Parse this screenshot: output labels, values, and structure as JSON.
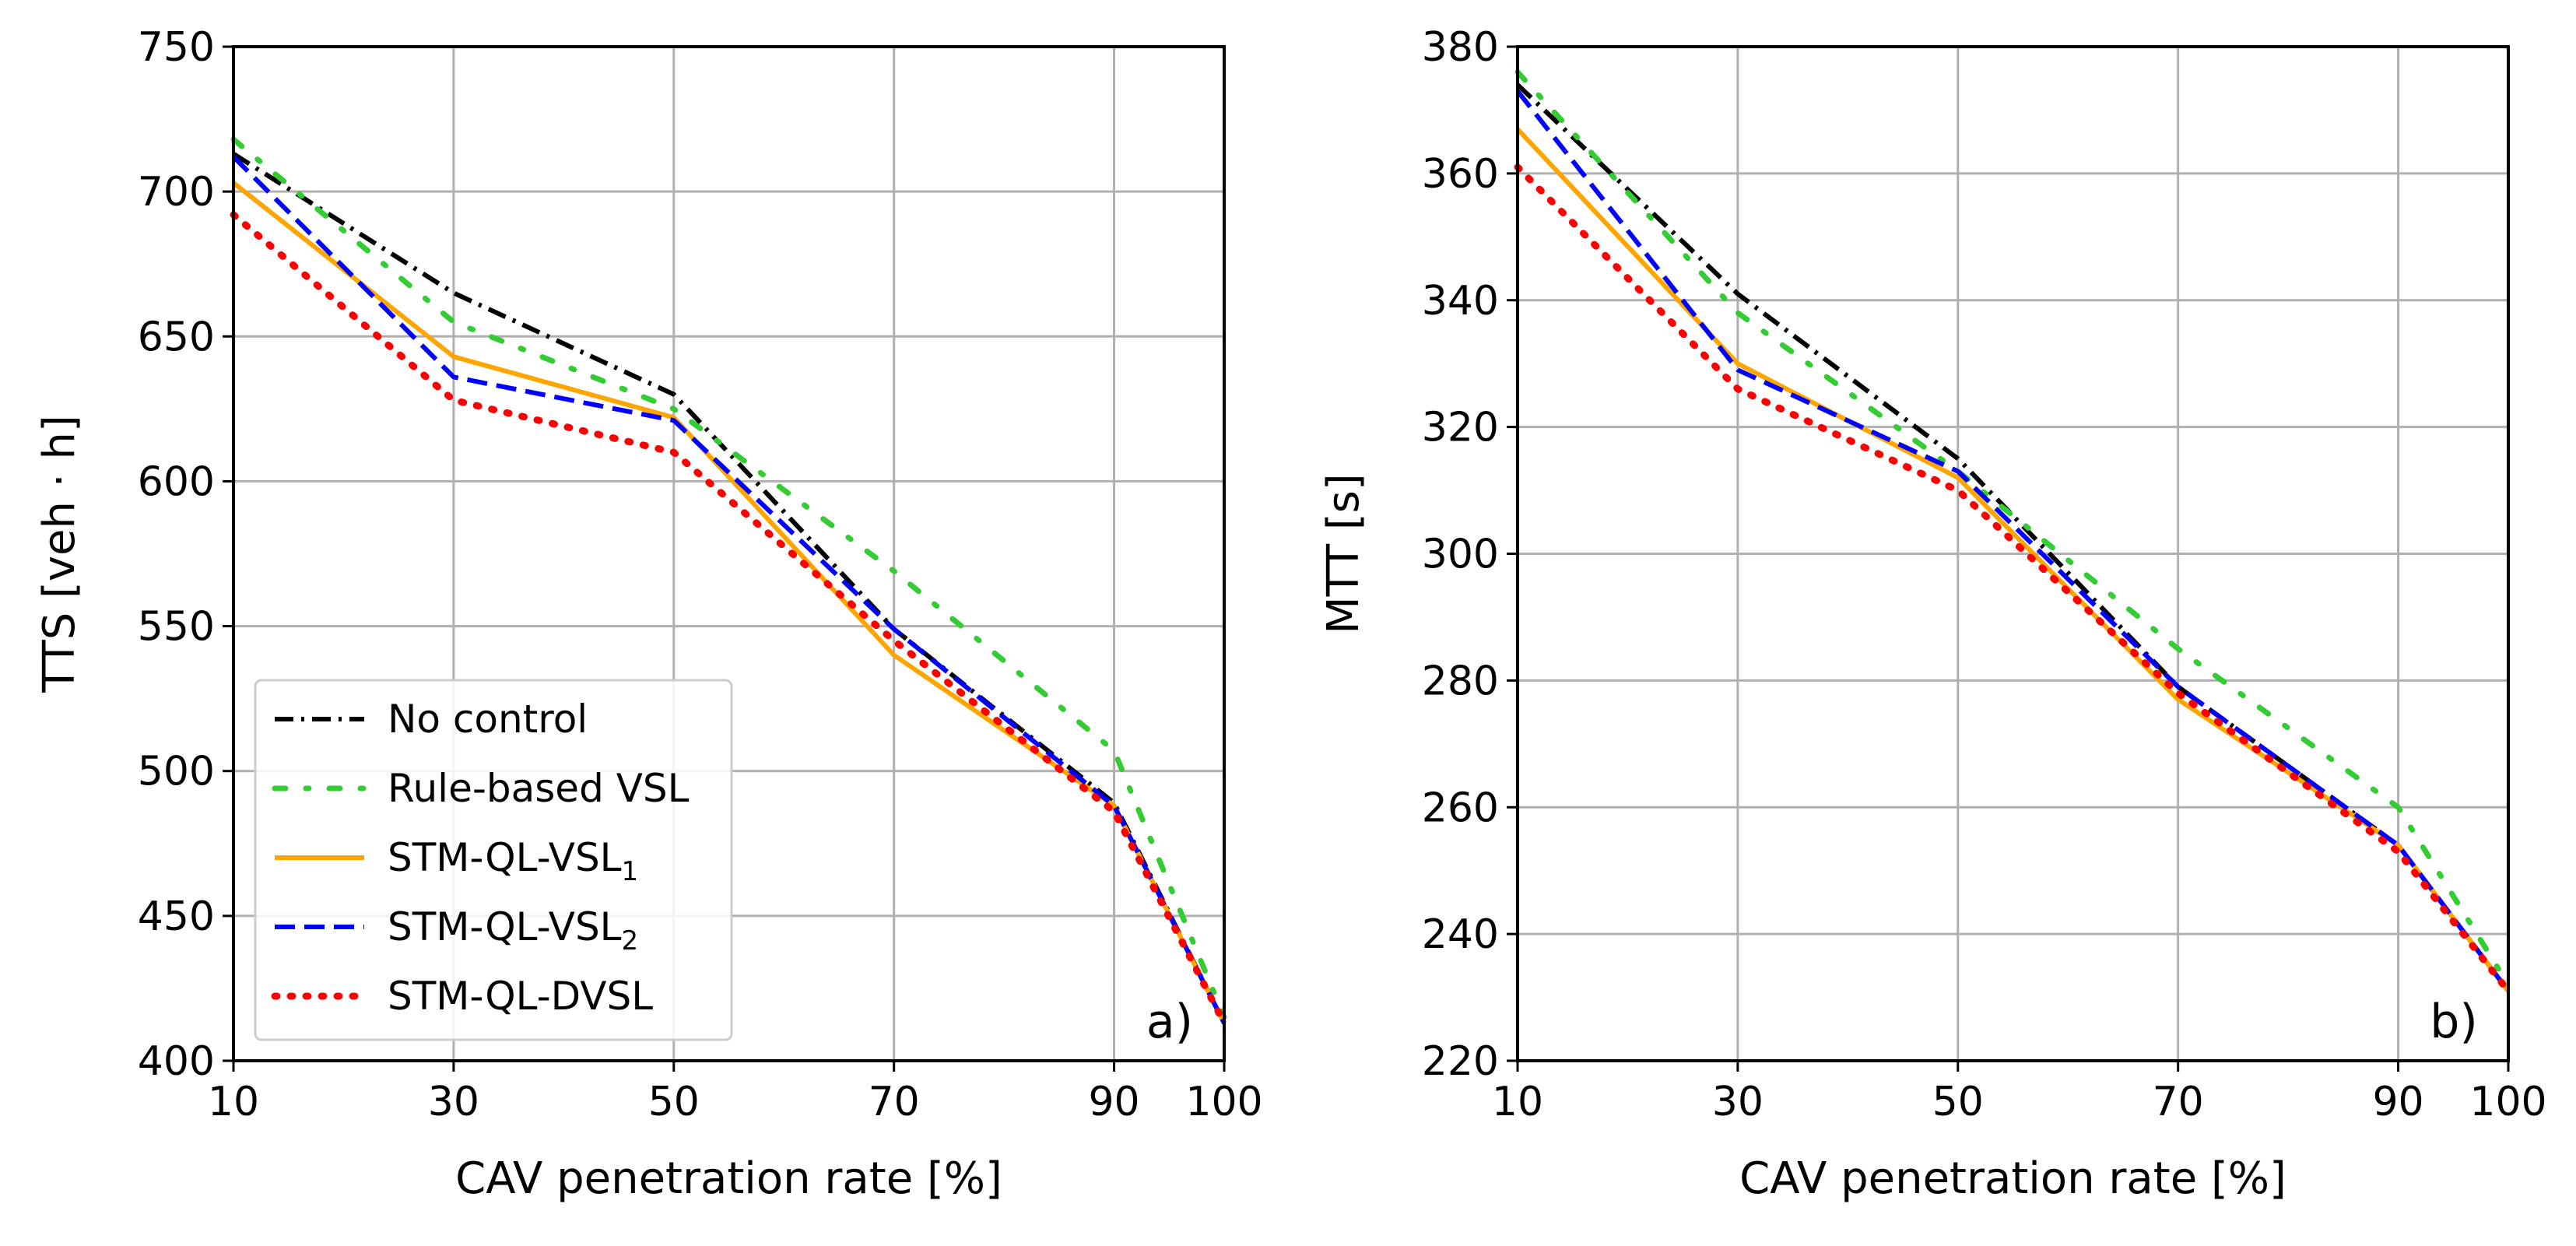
{
  "chart_data": [
    {
      "type": "line",
      "panel_label": "a)",
      "xlabel": "CAV penetration rate [%]",
      "ylabel": "TTS [veh · h]",
      "x": [
        10,
        30,
        50,
        70,
        90,
        100
      ],
      "x_ticks": [
        "10",
        "30",
        "50",
        "70",
        "90",
        "100"
      ],
      "ylim": [
        400,
        750
      ],
      "y_ticks": [
        "400",
        "450",
        "500",
        "550",
        "600",
        "650",
        "700",
        "750"
      ],
      "grid": true,
      "legend_position": "lower-left",
      "series": [
        {
          "name": "No control",
          "label_main": "No control",
          "label_sub": "",
          "color": "#000000",
          "style": "dash-dot",
          "values": [
            713,
            665,
            630,
            549,
            489,
            413
          ]
        },
        {
          "name": "Rule-based VSL",
          "label_main": "Rule-based VSL",
          "label_sub": "",
          "color": "#33cc33",
          "style": "sparse-dash-dot",
          "values": [
            718,
            655,
            625,
            569,
            507,
            415
          ]
        },
        {
          "name": "STM-QL-VSL1",
          "label_main": "STM-QL-VSL",
          "label_sub": "1",
          "color": "#ffa500",
          "style": "solid",
          "values": [
            703,
            643,
            622,
            540,
            488,
            413
          ]
        },
        {
          "name": "STM-QL-VSL2",
          "label_main": "STM-QL-VSL",
          "label_sub": "2",
          "color": "#0000ff",
          "style": "dashed",
          "values": [
            712,
            636,
            621,
            549,
            488,
            413
          ]
        },
        {
          "name": "STM-QL-DVSL",
          "label_main": "STM-QL-DVSL",
          "label_sub": "",
          "color": "#ff0000",
          "style": "dotted",
          "values": [
            692,
            628,
            610,
            545,
            486,
            413
          ]
        }
      ]
    },
    {
      "type": "line",
      "panel_label": "b)",
      "xlabel": "CAV penetration rate [%]",
      "ylabel": "MTT [s]",
      "x": [
        10,
        30,
        50,
        70,
        90,
        100
      ],
      "x_ticks": [
        "10",
        "30",
        "50",
        "70",
        "90",
        "100"
      ],
      "ylim": [
        220,
        380
      ],
      "y_ticks": [
        "220",
        "240",
        "260",
        "280",
        "300",
        "320",
        "340",
        "360",
        "380"
      ],
      "grid": true,
      "series": [
        {
          "name": "No control",
          "color": "#000000",
          "style": "dash-dot",
          "values": [
            374,
            341,
            315,
            279,
            254,
            231
          ]
        },
        {
          "name": "Rule-based VSL",
          "color": "#33cc33",
          "style": "sparse-dash-dot",
          "values": [
            376,
            338,
            313,
            285,
            260,
            232
          ]
        },
        {
          "name": "STM-QL-VSL1",
          "color": "#ffa500",
          "style": "solid",
          "values": [
            367,
            330,
            312,
            277,
            254,
            231
          ]
        },
        {
          "name": "STM-QL-VSL2",
          "color": "#0000ff",
          "style": "dashed",
          "values": [
            373,
            329,
            313,
            279,
            254,
            231
          ]
        },
        {
          "name": "STM-QL-DVSL",
          "color": "#ff0000",
          "style": "dotted",
          "values": [
            361,
            326,
            310,
            278,
            253,
            231
          ]
        }
      ]
    }
  ]
}
